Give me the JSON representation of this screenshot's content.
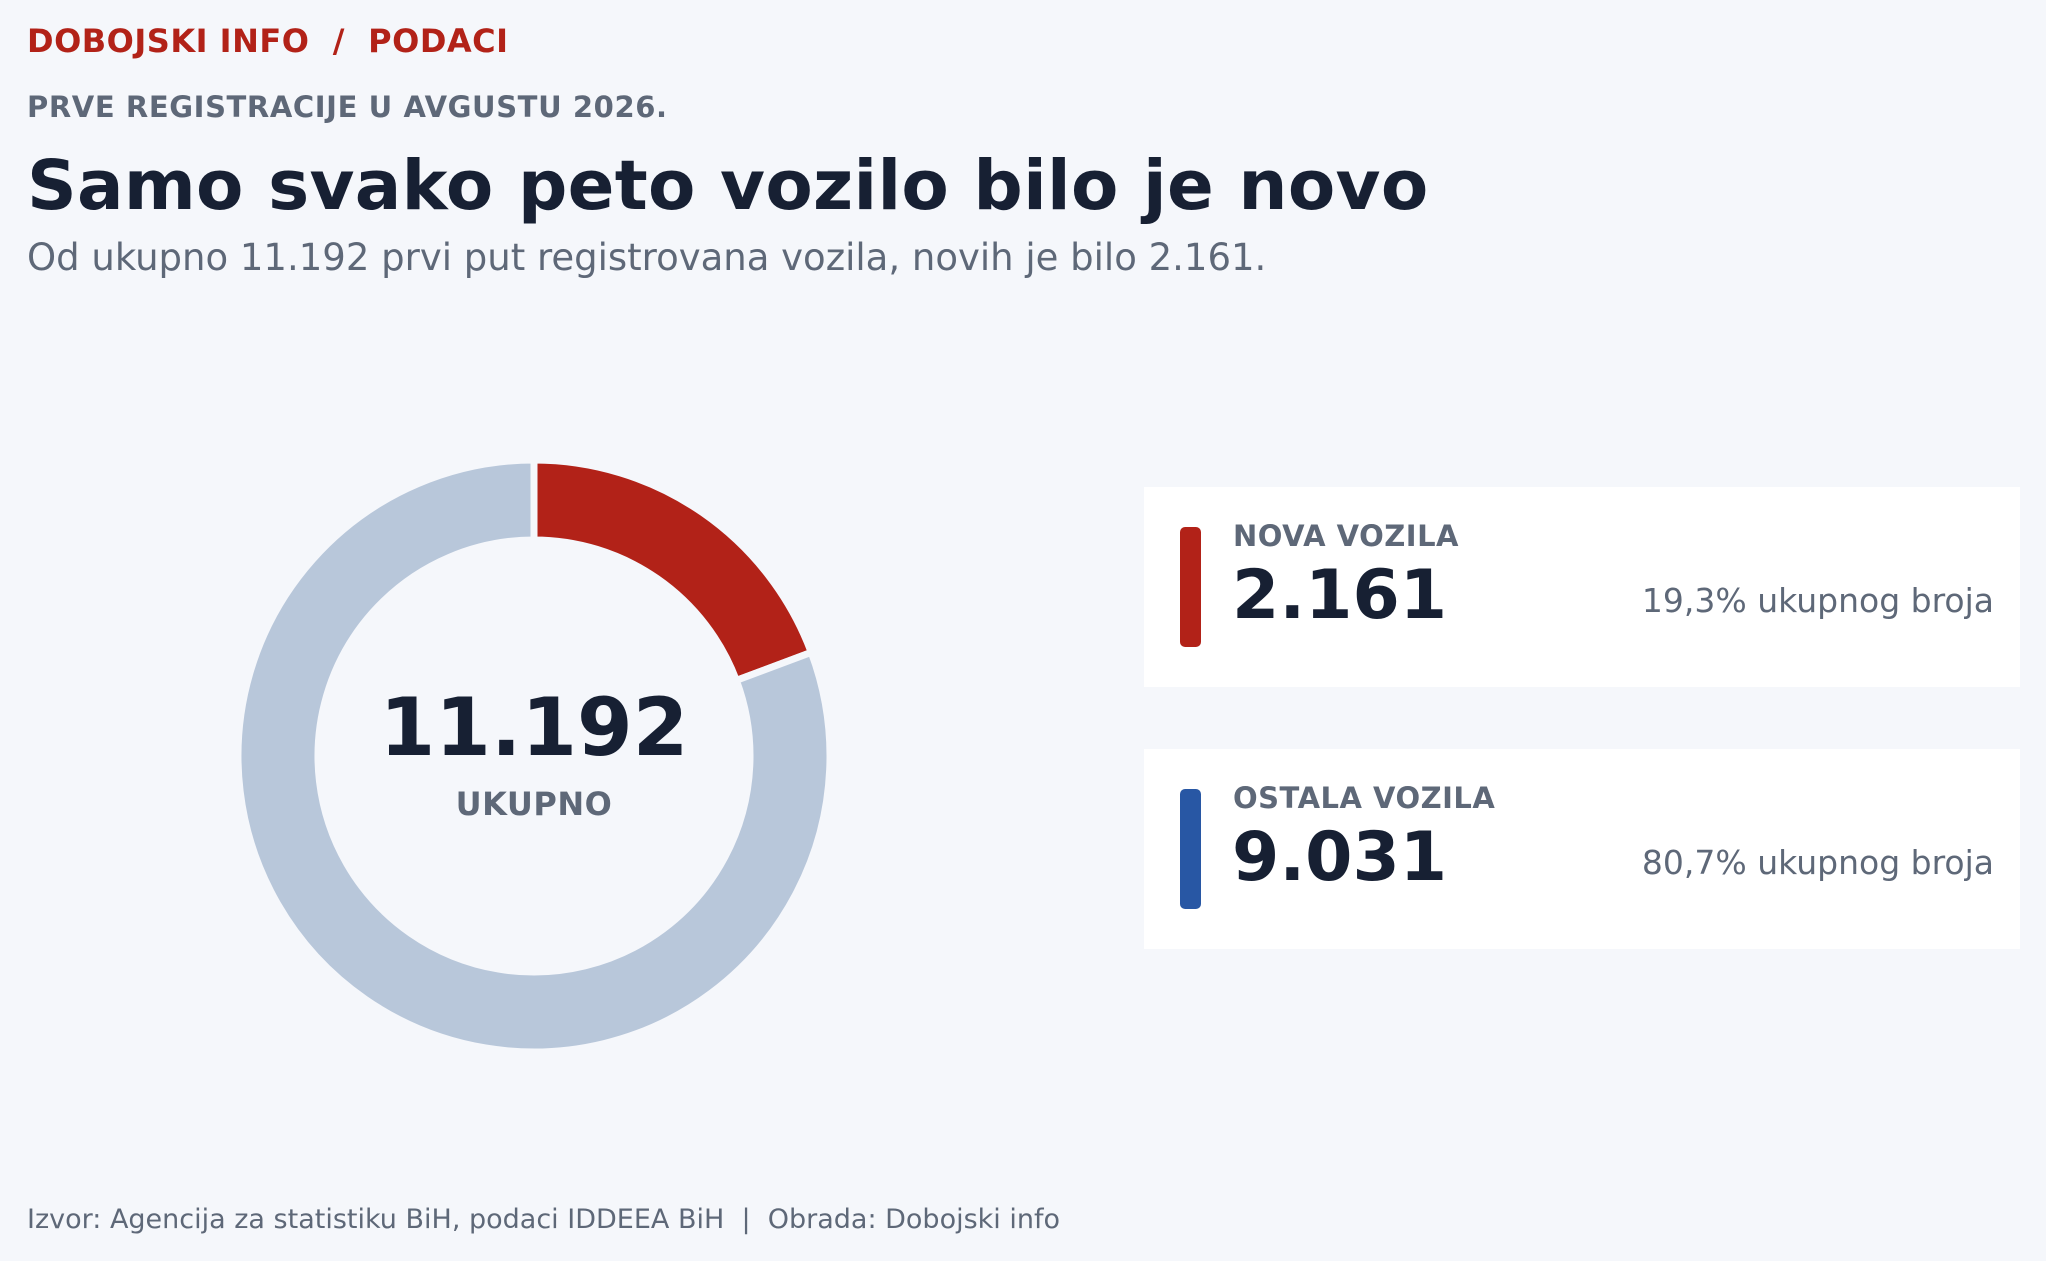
{
  "header": {
    "brand": "DOBOJSKI INFO  /  PODACI",
    "kicker": "PRVE REGISTRACIJE U AVGUSTU 2026.",
    "title": "Samo svako peto vozilo bilo je novo",
    "subtitle": "Od ukupno 11.192 prvi put registrovana vozila, novih je bilo 2.161."
  },
  "donut_center": {
    "value": "11.192",
    "label": "UKUPNO"
  },
  "legend": [
    {
      "label": "NOVA VOZILA",
      "value": "2.161",
      "share": "19,3% ukupnog broja",
      "color": "#b22218"
    },
    {
      "label": "OSTALA VOZILA",
      "value": "9.031",
      "share": "80,7% ukupnog broja",
      "color": "#2857a4"
    }
  ],
  "footer": {
    "source": "Izvor: Agencija za statistiku BiH, podaci IDDEEA BiH  |  Obrada: Dobojski info"
  },
  "chart_data": {
    "type": "pie",
    "style": "donut",
    "title": "Samo svako peto vozilo bilo je novo",
    "total": 11192,
    "slices": [
      {
        "label": "NOVA VOZILA",
        "value": 2161,
        "percent": 19.3,
        "color": "#b22218"
      },
      {
        "label": "OSTALA VOZILA",
        "value": 9031,
        "percent": 80.7,
        "color": "#b8c7da"
      }
    ],
    "start_angle": "top",
    "direction": "clockwise"
  }
}
